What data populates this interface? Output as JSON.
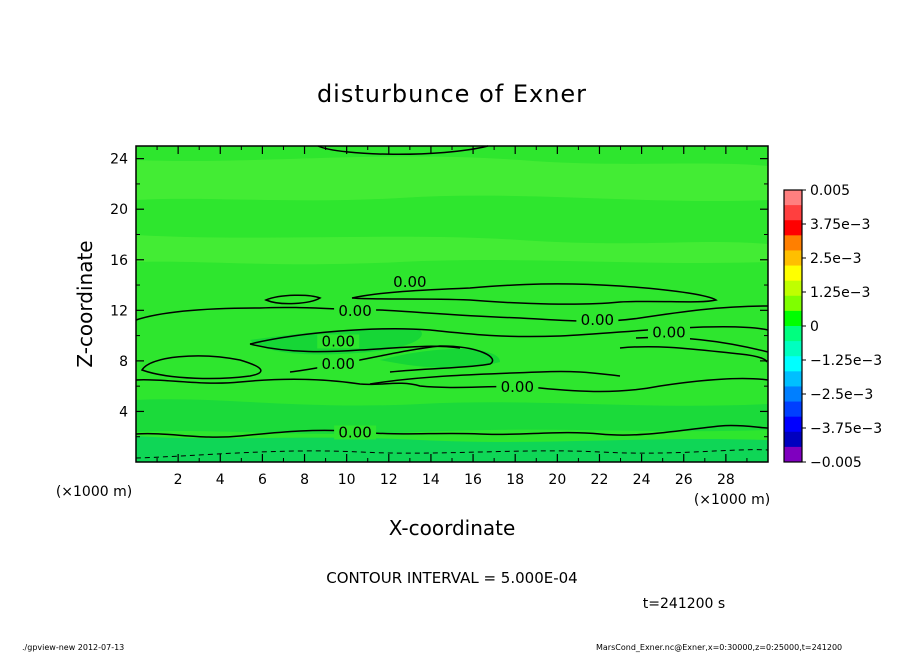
{
  "chart_data": {
    "type": "contour",
    "title": "disturbunce of Exner",
    "xlabel": "X-coordinate",
    "ylabel": "Z-coordinate",
    "x_unit": "(×1000 m)",
    "y_unit": "(×1000 m)",
    "xlim": [
      0,
      30
    ],
    "ylim": [
      0,
      25
    ],
    "x_ticks": [
      2,
      4,
      6,
      8,
      10,
      12,
      14,
      16,
      18,
      20,
      22,
      24,
      26,
      28
    ],
    "y_ticks": [
      4,
      8,
      12,
      16,
      20,
      24
    ],
    "contour_interval_text": "CONTOUR INTERVAL = 5.000E-04",
    "time_text": "t=241200 s",
    "contour_labels": [
      {
        "text": "0.00",
        "x": 13.0,
        "y": 14.0
      },
      {
        "text": "0.00",
        "x": 10.4,
        "y": 11.7
      },
      {
        "text": "0.00",
        "x": 21.9,
        "y": 11.0
      },
      {
        "text": "0.00",
        "x": 25.3,
        "y": 10.0
      },
      {
        "text": "0.00",
        "x": 9.6,
        "y": 9.3
      },
      {
        "text": "0.00",
        "x": 9.6,
        "y": 7.5
      },
      {
        "text": "0.00",
        "x": 18.1,
        "y": 5.7
      },
      {
        "text": "0.00",
        "x": 10.4,
        "y": 2.1
      }
    ],
    "colorbar": {
      "labels": [
        "0.005",
        "3.75e−3",
        "2.5e−3",
        "1.25e−3",
        "0",
        "−1.25e−3",
        "−2.5e−3",
        "−3.75e−3",
        "−0.005"
      ],
      "values": [
        0.005,
        0.00375,
        0.0025,
        0.00125,
        0,
        -0.00125,
        -0.0025,
        -0.00375,
        -0.005
      ],
      "colors": [
        "#ff7f7f",
        "#ff3f3f",
        "#ff0000",
        "#ff7f00",
        "#ffbf00",
        "#ffff00",
        "#bfff00",
        "#7fff00",
        "#00ff00",
        "#00ff7f",
        "#00ffbf",
        "#00ffff",
        "#00bfff",
        "#007fff",
        "#003fff",
        "#0000ff",
        "#0000bf",
        "#7f00bf"
      ]
    }
  },
  "footer": {
    "left": "./gpview-new   2012-07-13",
    "right": "MarsCond_Exner.nc@Exner,x=0:30000,z=0:25000,t=241200"
  },
  "colors": {
    "field_base": "#2ee62e",
    "field_light": "#43ec34",
    "field_dark": "#16d636",
    "field_edge": "#0fd656"
  }
}
